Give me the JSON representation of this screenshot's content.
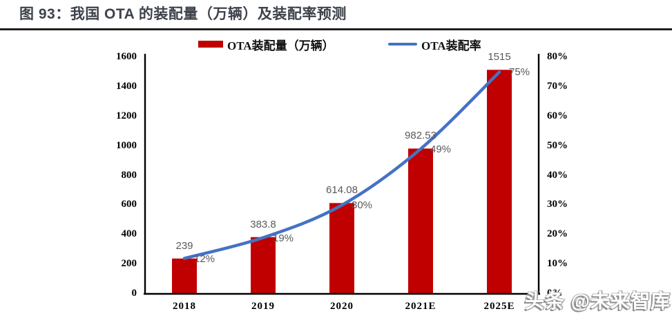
{
  "page": {
    "title": "图 93：我国 OTA 的装配量（万辆）及装配率预测",
    "watermark": "头条 @未来智库"
  },
  "chart_data": {
    "type": "combo",
    "title": "图 93：我国 OTA 的装配量（万辆）及装配率预测",
    "categories": [
      "2018",
      "2019",
      "2020",
      "2021E",
      "2025E"
    ],
    "series": [
      {
        "name": "OTA装配量（万辆）",
        "kind": "bar",
        "axis": "left",
        "color": "#C00000",
        "values": [
          239,
          383.8,
          614.08,
          982.53,
          1515
        ],
        "labels": [
          "239",
          "383.8",
          "614.08",
          "982.53",
          "1515"
        ]
      },
      {
        "name": "OTA装配率",
        "kind": "line",
        "axis": "right",
        "color": "#4472C4",
        "values": [
          0.12,
          0.19,
          0.3,
          0.49,
          0.75
        ],
        "labels": [
          "12%",
          "19%",
          "30%",
          "49%",
          "75%"
        ]
      }
    ],
    "left_axis": {
      "min": 0,
      "max": 1600,
      "step": 200,
      "ticks": [
        "0",
        "200",
        "400",
        "600",
        "800",
        "1000",
        "1200",
        "1400",
        "1600"
      ]
    },
    "right_axis": {
      "min": 0,
      "max": 0.8,
      "step": 0.1,
      "ticks": [
        "0%",
        "10%",
        "20%",
        "30%",
        "40%",
        "50%",
        "60%",
        "70%",
        "80%"
      ]
    },
    "legend_position": "top",
    "grid": false,
    "data_label_color": "#595959",
    "axis_color": "#000000"
  }
}
